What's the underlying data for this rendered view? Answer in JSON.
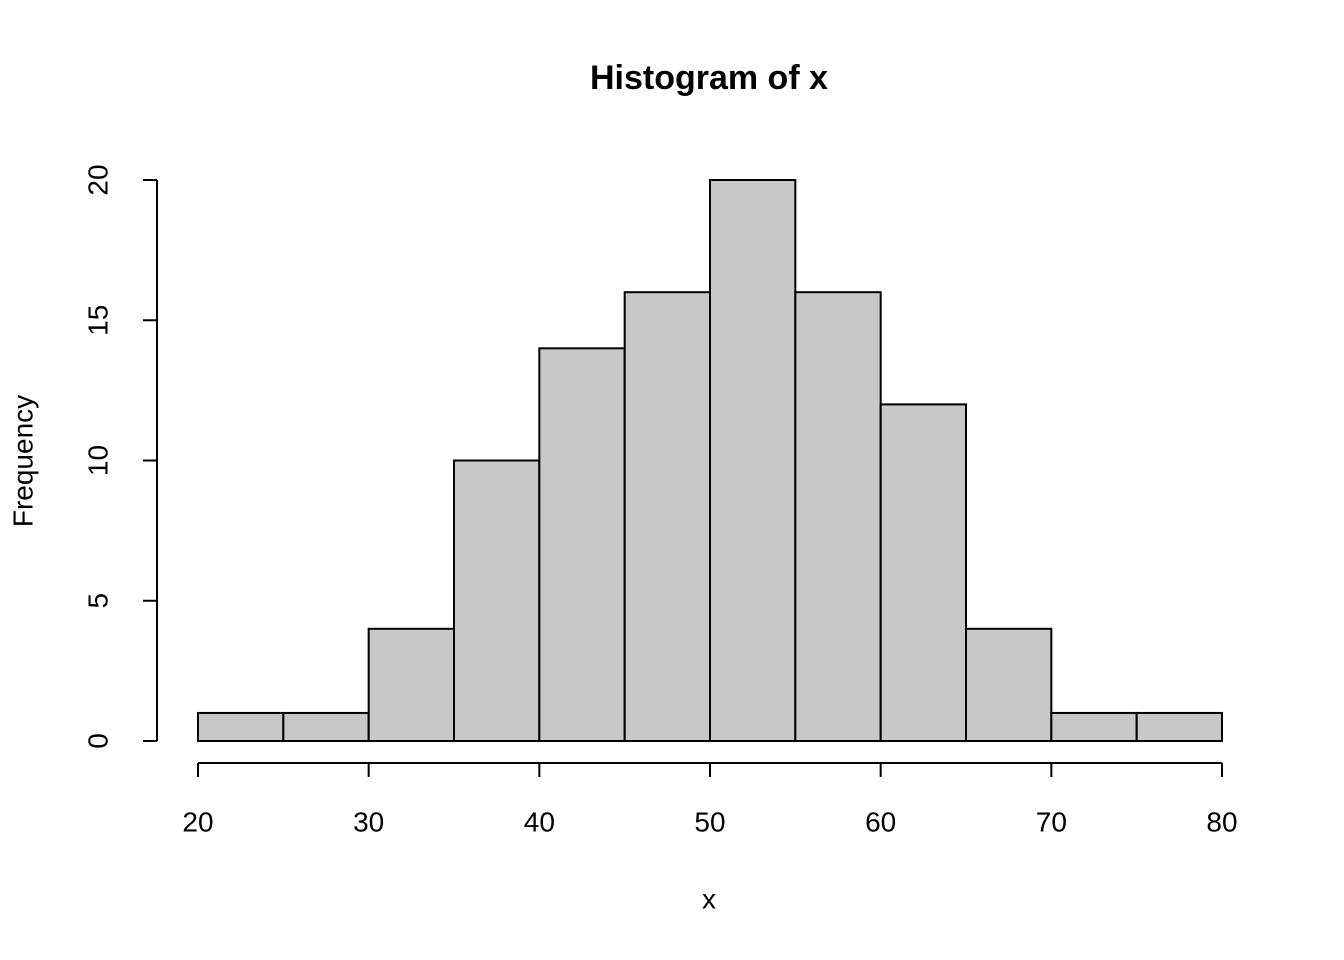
{
  "chart_data": {
    "type": "histogram",
    "title": "Histogram of x",
    "x_label": "x",
    "y_label": "Frequency",
    "bins": [
      20,
      25,
      30,
      35,
      40,
      45,
      50,
      55,
      60,
      65,
      70,
      75,
      80
    ],
    "values": [
      1,
      1,
      4,
      10,
      14,
      16,
      20,
      16,
      12,
      4,
      1,
      1
    ],
    "color": "#c8c8c8",
    "xlim": [
      20,
      80
    ],
    "xticks": [
      20,
      30,
      40,
      50,
      60,
      70,
      80
    ],
    "ylim": [
      0,
      20
    ],
    "yticks": [
      0,
      5,
      10,
      15,
      20
    ]
  }
}
